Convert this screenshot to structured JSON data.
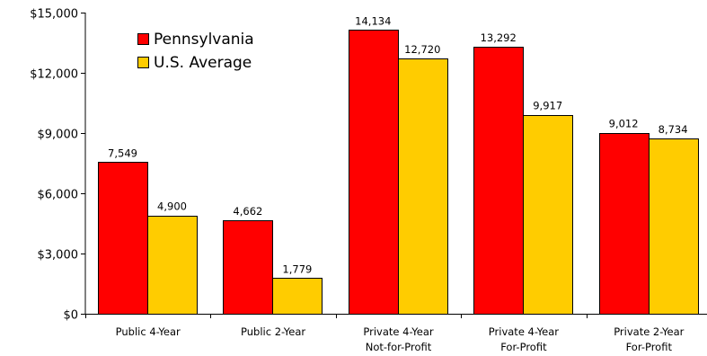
{
  "chart_data": {
    "type": "bar",
    "categories": [
      [
        "Public 4-Year"
      ],
      [
        "Public 2-Year"
      ],
      [
        "Private 4-Year",
        "Not-for-Profit"
      ],
      [
        "Private 4-Year",
        "For-Profit"
      ],
      [
        "Private 2-Year",
        "For-Profit"
      ]
    ],
    "series": [
      {
        "name": "Pennsylvania",
        "color": "#ff0000",
        "values": [
          7549,
          4662,
          14134,
          13292,
          9012
        ],
        "labels": [
          "7,549",
          "4,662",
          "14,134",
          "13,292",
          "9,012"
        ]
      },
      {
        "name": "U.S. Average",
        "color": "#ffcc00",
        "values": [
          4900,
          1779,
          12720,
          9917,
          8734
        ],
        "labels": [
          "4,900",
          "1,779",
          "12,720",
          "9,917",
          "8,734"
        ]
      }
    ],
    "ylim": [
      0,
      15000
    ],
    "yticks": [
      0,
      3000,
      6000,
      9000,
      12000,
      15000
    ],
    "ytick_labels": [
      "$0",
      "$3,000",
      "$6,000",
      "$9,000",
      "$12,000",
      "$15,000"
    ],
    "grid": false,
    "legend_position": "top-left"
  }
}
